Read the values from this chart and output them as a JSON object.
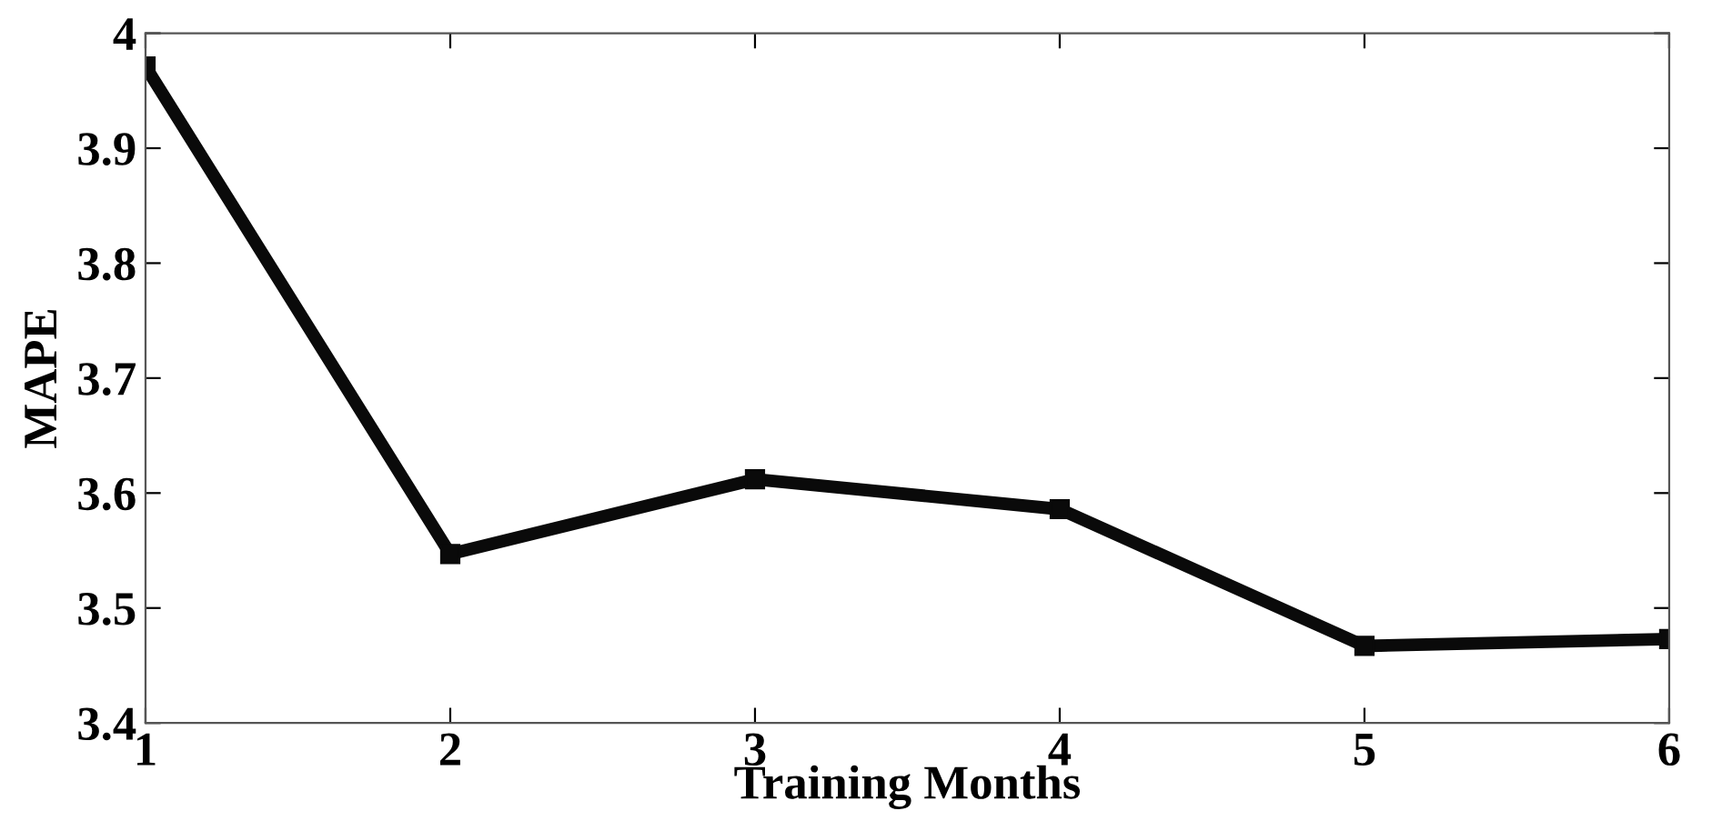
{
  "chart_data": {
    "type": "line",
    "xlabel": "Training Months",
    "ylabel": "MAPE",
    "x": [
      1,
      2,
      3,
      4,
      5,
      6
    ],
    "series": [
      {
        "color": "#0a0a0a",
        "values": [
          3.971,
          3.547,
          3.612,
          3.586,
          3.467,
          3.473
        ]
      }
    ],
    "xlim": [
      1,
      6
    ],
    "xticks": [
      1,
      2,
      3,
      4,
      5,
      6
    ],
    "ylim": [
      3.4,
      4
    ],
    "yticks": [
      3.4,
      3.5,
      3.6,
      3.7,
      3.8,
      3.9,
      4
    ],
    "grid": false,
    "legend": false,
    "marker": "square",
    "line_style": "solid"
  }
}
